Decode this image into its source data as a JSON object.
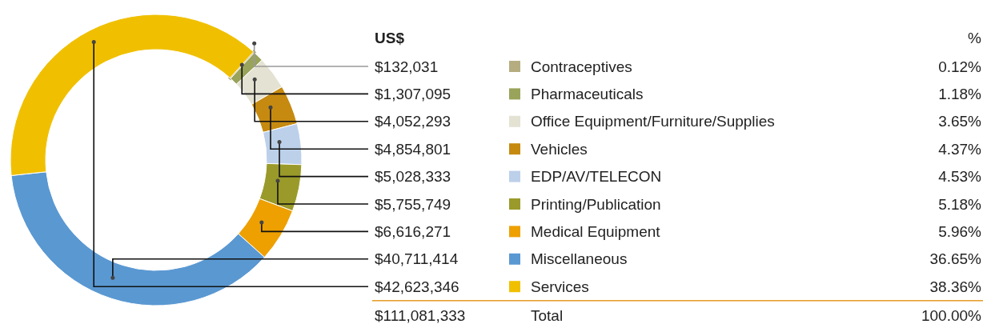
{
  "chart_data": {
    "type": "donut",
    "categories": [
      "Contraceptives",
      "Pharmaceuticals",
      "Office Equipment/Furniture/Supplies",
      "Vehicles",
      "EDP/AV/TELECON",
      "Printing/Publication",
      "Medical Equipment",
      "Miscellaneous",
      "Services"
    ],
    "values": [
      132031,
      1307095,
      4052293,
      4854801,
      5028333,
      5755749,
      6616271,
      40711414,
      42623346
    ],
    "value_labels": [
      "$132,031",
      "$1,307,095",
      "$4,052,293",
      "$4,854,801",
      "$5,028,333",
      "$5,755,749",
      "$6,616,271",
      "$40,711,414",
      "$42,623,346"
    ],
    "colors": [
      "#b5ad80",
      "#9aa35a",
      "#e4e2d2",
      "#c68a10",
      "#bcd0ea",
      "#9a9a2a",
      "#eda000",
      "#5a98d2",
      "#f0c000"
    ],
    "annotations": [
      "US$",
      "%",
      "$111,081,333",
      "Total",
      "100.00%",
      {
        "text": "0.12%",
        "x": "Contraceptives"
      },
      {
        "text": "1.18%",
        "x": "Pharmaceuticals"
      },
      {
        "text": "3.65%",
        "x": "Office Equipment/Furniture/Supplies"
      },
      {
        "text": "4.37%",
        "x": "Vehicles"
      },
      {
        "text": "4.53%",
        "x": "EDP/AV/TELECON"
      },
      {
        "text": "5.18%",
        "x": "Printing/Publication"
      },
      {
        "text": "5.96%",
        "x": "Medical Equipment"
      },
      {
        "text": "36.65%",
        "x": "Miscellaneous"
      },
      {
        "text": "38.36%",
        "x": "Services"
      }
    ],
    "legend": "right"
  }
}
